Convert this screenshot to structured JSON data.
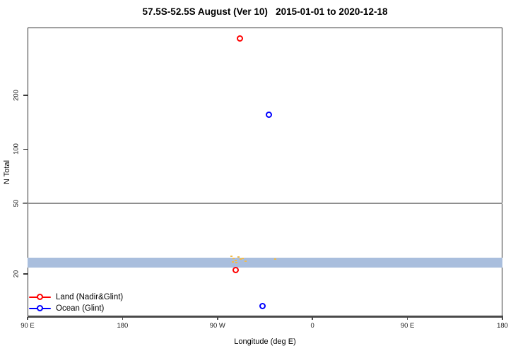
{
  "figure": {
    "title": "57.5S-52.5S August (Ver 10)   2015-01-01 to 2020-12-18"
  },
  "chart_data": {
    "type": "scatter",
    "title": "57.5S-52.5S August (Ver 10)   2015-01-01 to 2020-12-18",
    "x_axis": {
      "label": "Longitude (deg E)",
      "scale": "linear, longitude wrapped eastward from 90E through 180, 90W, 0, 90E to 180",
      "range": [
        90,
        540
      ],
      "ticks": [
        {
          "value": 90,
          "label": "90 E"
        },
        {
          "value": 180,
          "label": "180"
        },
        {
          "value": 270,
          "label": "90 W"
        },
        {
          "value": 360,
          "label": "0"
        },
        {
          "value": 450,
          "label": "90 E"
        },
        {
          "value": 540,
          "label": "180"
        }
      ]
    },
    "y_axis": {
      "label": "N Total",
      "scale": "log10",
      "range": [
        11.5,
        480
      ],
      "ticks": [
        {
          "value": 20,
          "label": "20"
        },
        {
          "value": 50,
          "label": "50"
        },
        {
          "value": 100,
          "label": "100"
        },
        {
          "value": 200,
          "label": "200"
        }
      ]
    },
    "series": [
      {
        "name": "Land (Nadir&Glint)",
        "color": "#ff0000",
        "marker": "open-circle",
        "points": [
          {
            "axis_deg": 291.5,
            "approx_longitude": "69 W",
            "n": 415
          },
          {
            "axis_deg": 287.5,
            "approx_longitude": "72 W",
            "n": 21
          }
        ]
      },
      {
        "name": "Ocean (Glint)",
        "color": "#0000ff",
        "marker": "open-circle",
        "points": [
          {
            "axis_deg": 319,
            "approx_longitude": "41 W",
            "n": 155
          },
          {
            "axis_deg": 313,
            "approx_longitude": "47 W",
            "n": 13.2
          }
        ]
      }
    ],
    "annotations": {
      "band": {
        "color": "#a9bedd",
        "n_min": 21.7,
        "n_max": 24.7,
        "full_width": true
      },
      "reference_line": {
        "color": "#8f8f8f",
        "n": 50
      },
      "specks": {
        "color": "#f2bb4a",
        "points": [
          {
            "d": 282.9,
            "n": 25.2
          },
          {
            "d": 284.9,
            "n": 24.5
          },
          {
            "d": 286.9,
            "n": 23.8
          },
          {
            "d": 289.6,
            "n": 24.9
          },
          {
            "d": 291.6,
            "n": 24.3
          },
          {
            "d": 288.2,
            "n": 23.2
          },
          {
            "d": 284.2,
            "n": 23.4
          },
          {
            "d": 293.6,
            "n": 24.5
          },
          {
            "d": 296.9,
            "n": 23.6
          },
          {
            "d": 324.4,
            "n": 24.3
          }
        ]
      }
    },
    "legend": {
      "position": "bottom-left",
      "entries": [
        {
          "label": "Land (Nadir&Glint)",
          "color": "#ff0000"
        },
        {
          "label": "Ocean (Glint)",
          "color": "#0000ff"
        }
      ]
    }
  }
}
